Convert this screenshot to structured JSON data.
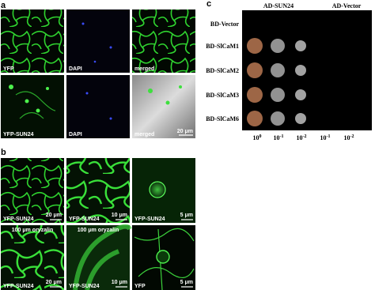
{
  "panel_a": {
    "letter": "a",
    "images": [
      {
        "label": "YFP"
      },
      {
        "label": "DAPI"
      },
      {
        "label": "merged"
      },
      {
        "label": "YFP-SUN24"
      },
      {
        "label": "DAPI"
      },
      {
        "label": "merged",
        "scale": "20 μm"
      }
    ]
  },
  "panel_b": {
    "letter": "b",
    "images": [
      {
        "label": "YFP-SUN24",
        "scale": "20 μm"
      },
      {
        "label": "YFP-SUN24",
        "scale": "10 μm"
      },
      {
        "label": "YFP-SUN24",
        "scale": "5 μm"
      },
      {
        "label": "YFP-SUN24",
        "scale": "20 μm",
        "treatment": "100 μm oryzalin"
      },
      {
        "label": "YFP-SUN24",
        "scale": "10 μm",
        "treatment": "100 μm oryzalin"
      },
      {
        "label": "YFP",
        "scale": "5 μm"
      }
    ]
  },
  "panel_c": {
    "letter": "c",
    "columns": [
      "AD-SUN24",
      "AD-Vector"
    ],
    "rows": [
      "BD-Vector",
      "BD-SlCaM1",
      "BD-SlCaM2",
      "BD-SlCaM3",
      "BD-SlCaM6"
    ],
    "dilutions": [
      {
        "base": "10",
        "exp": "0"
      },
      {
        "base": "10",
        "exp": "-1"
      },
      {
        "base": "10",
        "exp": "-2"
      },
      {
        "base": "10",
        "exp": "-1"
      },
      {
        "base": "10",
        "exp": "-2"
      }
    ]
  }
}
